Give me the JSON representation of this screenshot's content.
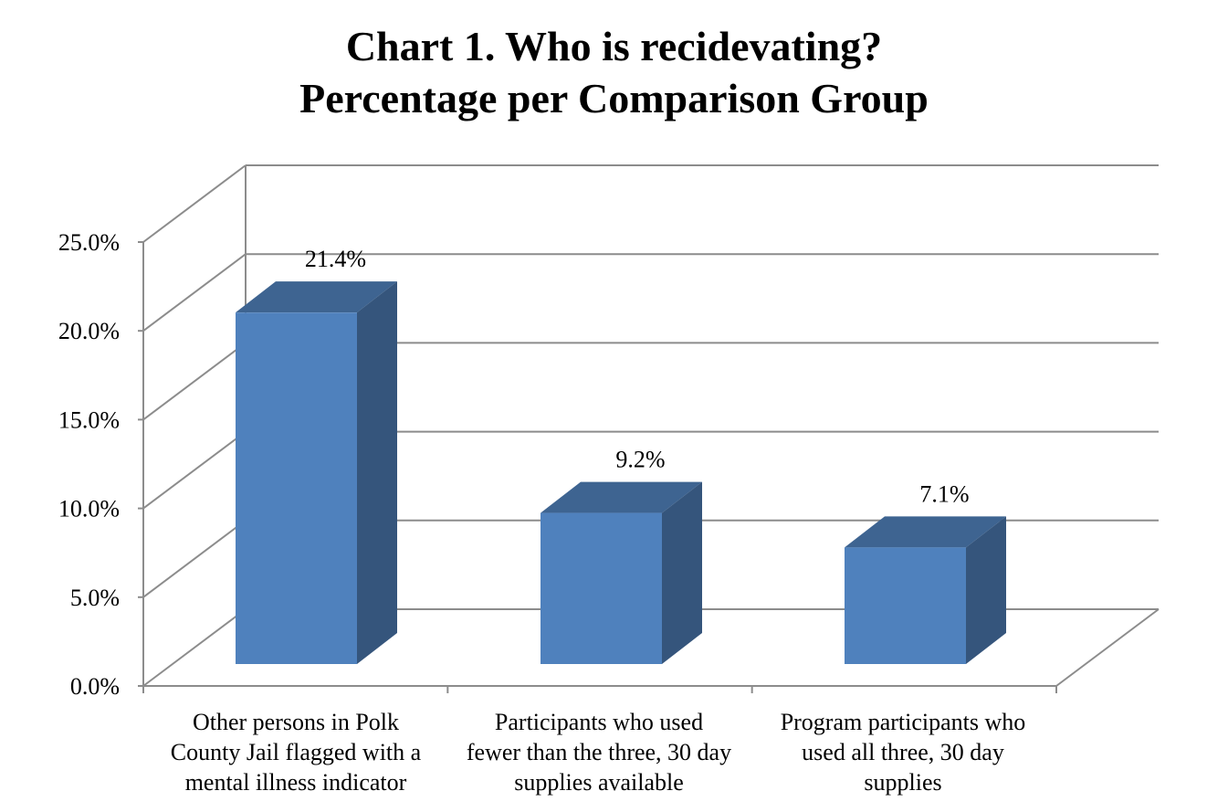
{
  "chart_data": {
    "type": "bar",
    "title_lines": [
      "Chart 1. Who is recidevating?",
      "Percentage per Comparison Group"
    ],
    "categories": [
      [
        "Other persons in Polk",
        "County Jail flagged with a",
        "mental illness indicator"
      ],
      [
        "Participants who used",
        "fewer than the three, 30 day",
        "supplies available"
      ],
      [
        "Program participants who",
        "used all three, 30 day",
        "supplies"
      ]
    ],
    "values": [
      21.4,
      9.2,
      7.1
    ],
    "data_labels": [
      "21.4%",
      "9.2%",
      "7.1%"
    ],
    "yticks": [
      "0.0%",
      "5.0%",
      "10.0%",
      "15.0%",
      "20.0%",
      "25.0%"
    ],
    "ylim": [
      0,
      25
    ],
    "grid": true,
    "style": "3d-column",
    "colors": {
      "bar_front": "#4f81bd",
      "bar_side": "#35557c",
      "bar_top": "#3e6491",
      "grid": "#8c8c8c"
    }
  }
}
